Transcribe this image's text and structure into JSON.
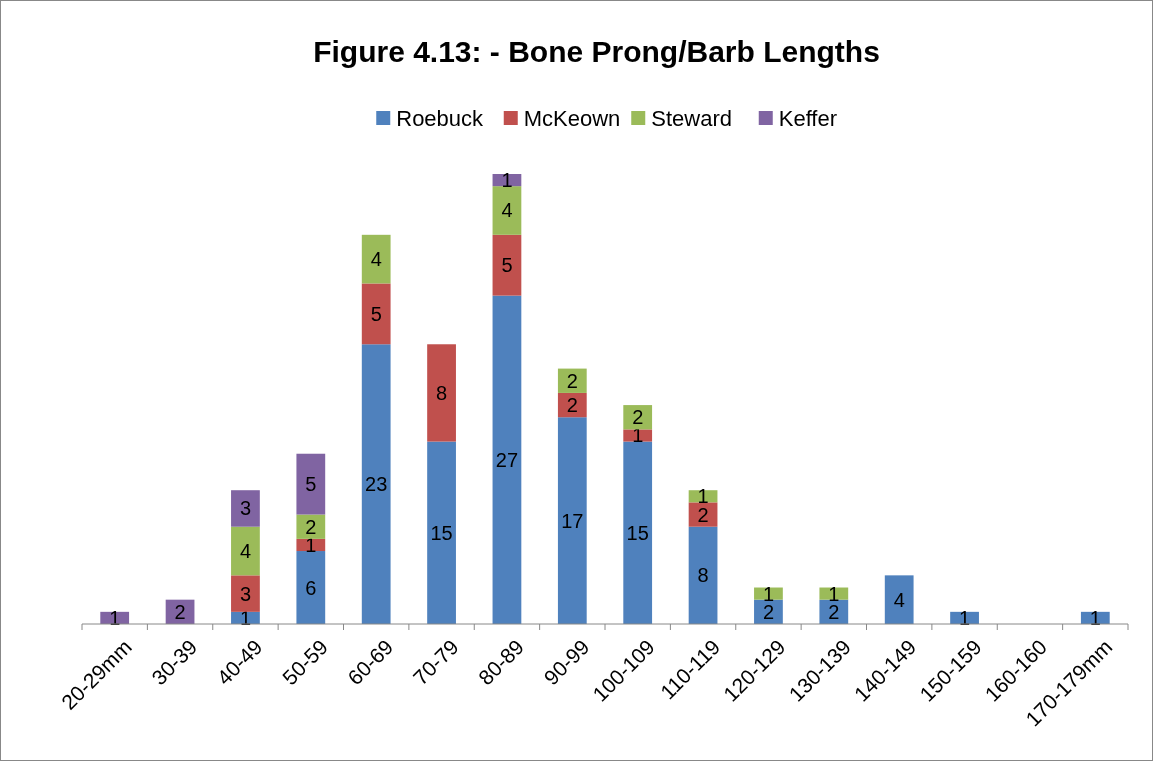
{
  "chart_data": {
    "type": "bar",
    "stacked": true,
    "title": "Figure 4.13: - Bone Prong/Barb Lengths",
    "legend": "top",
    "data_labels": true,
    "categories": [
      "20-29mm",
      "30-39",
      "40-49",
      "50-59",
      "60-69",
      "70-79",
      "80-89",
      "90-99",
      "100-109",
      "110-119",
      "120-129",
      "130-139",
      "140-149",
      "150-159",
      "160-160",
      "170-179mm"
    ],
    "series": [
      {
        "name": "Roebuck",
        "color": "#4f81bd",
        "values": [
          null,
          null,
          1,
          6,
          23,
          15,
          27,
          17,
          15,
          8,
          2,
          2,
          4,
          1,
          null,
          1
        ]
      },
      {
        "name": "McKeown",
        "color": "#c0504d",
        "values": [
          null,
          null,
          3,
          1,
          5,
          8,
          5,
          2,
          1,
          2,
          null,
          null,
          null,
          null,
          null,
          null
        ]
      },
      {
        "name": "Steward",
        "color": "#9bbb59",
        "values": [
          null,
          null,
          4,
          2,
          4,
          null,
          4,
          2,
          2,
          1,
          1,
          1,
          null,
          null,
          null,
          null
        ]
      },
      {
        "name": "Keffer",
        "color": "#8064a2",
        "values": [
          1,
          2,
          3,
          5,
          null,
          null,
          1,
          null,
          null,
          null,
          null,
          null,
          null,
          null,
          null,
          null
        ]
      }
    ]
  }
}
